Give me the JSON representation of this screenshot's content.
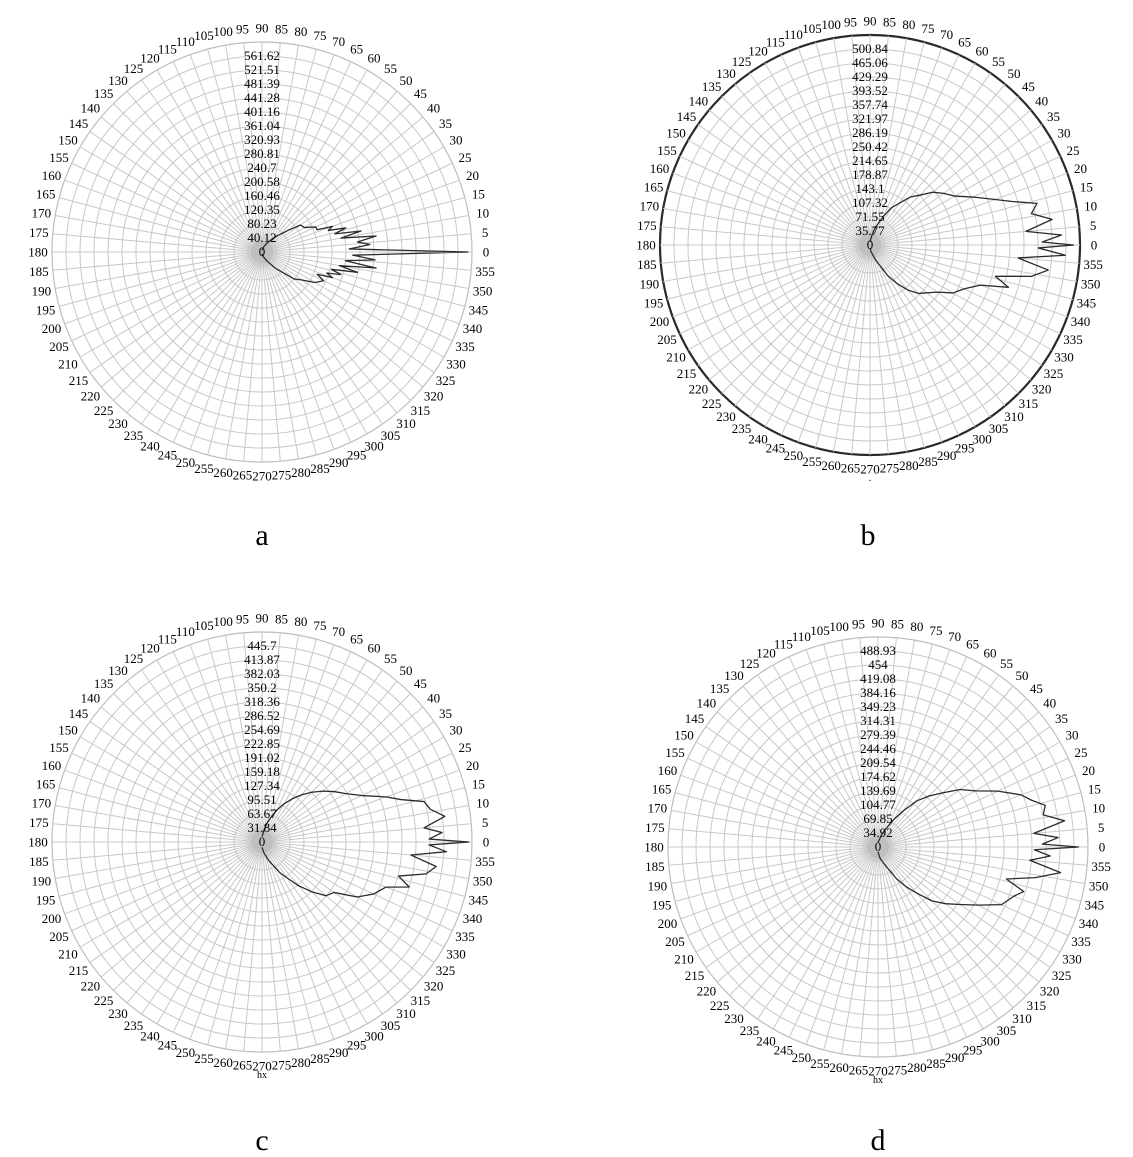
{
  "chart_data": [
    {
      "type": "line",
      "subtype": "polar",
      "panel_label": "a",
      "angle_unit": "degrees",
      "angle_ticks": [
        0,
        5,
        10,
        15,
        20,
        25,
        30,
        35,
        40,
        45,
        50,
        55,
        60,
        65,
        70,
        75,
        80,
        85,
        90,
        95,
        100,
        105,
        110,
        115,
        120,
        125,
        130,
        135,
        140,
        145,
        150,
        155,
        160,
        165,
        170,
        175,
        180,
        185,
        190,
        195,
        200,
        205,
        210,
        215,
        220,
        225,
        230,
        235,
        240,
        245,
        250,
        255,
        260,
        265,
        270,
        275,
        280,
        285,
        290,
        295,
        300,
        305,
        310,
        315,
        320,
        325,
        330,
        335,
        340,
        345,
        350,
        355
      ],
      "radial_tick_labels": [
        "0",
        "40.12",
        "80.23",
        "120.35",
        "160.46",
        "200.58",
        "240.7",
        "280.81",
        "320.93",
        "361.04",
        "401.16",
        "441.28",
        "481.39",
        "521.51",
        "561.62"
      ],
      "rlim": [
        0,
        601.74
      ],
      "grid": true,
      "outer_ring_bold": false,
      "trace_label": "",
      "series": [
        {
          "theta": [
            -90,
            -80,
            -70,
            -60,
            -50,
            -40,
            -35,
            -30,
            -25,
            -22,
            -20,
            -18,
            -16,
            -14,
            -12,
            -10,
            -8,
            -6,
            -4,
            -2,
            0,
            2,
            4,
            6,
            8,
            10,
            12,
            14,
            16,
            18,
            20,
            22,
            25,
            30,
            35,
            40,
            50,
            60,
            70,
            80,
            90
          ],
          "r": [
            5,
            10,
            17,
            32,
            62,
            120,
            140,
            175,
            195,
            170,
            215,
            195,
            235,
            205,
            280,
            225,
            330,
            240,
            325,
            260,
            590,
            250,
            310,
            275,
            330,
            230,
            290,
            215,
            250,
            200,
            215,
            170,
            170,
            140,
            135,
            95,
            55,
            30,
            17,
            10,
            5
          ]
        }
      ]
    },
    {
      "type": "line",
      "subtype": "polar",
      "panel_label": "b",
      "angle_unit": "degrees",
      "angle_ticks": [
        0,
        5,
        10,
        15,
        20,
        25,
        30,
        35,
        40,
        45,
        50,
        55,
        60,
        65,
        70,
        75,
        80,
        85,
        90,
        95,
        100,
        105,
        110,
        115,
        120,
        125,
        130,
        135,
        140,
        145,
        150,
        155,
        160,
        165,
        170,
        175,
        180,
        185,
        190,
        195,
        200,
        205,
        210,
        215,
        220,
        225,
        230,
        235,
        240,
        245,
        250,
        255,
        260,
        265,
        270,
        275,
        280,
        285,
        290,
        295,
        300,
        305,
        310,
        315,
        320,
        325,
        330,
        335,
        340,
        345,
        350,
        355
      ],
      "radial_tick_labels": [
        "0",
        "35.77",
        "71.55",
        "107.32",
        "143.1",
        "178.87",
        "214.65",
        "250.42",
        "286.19",
        "321.97",
        "357.74",
        "393.52",
        "429.29",
        "465.06",
        "500.84"
      ],
      "rlim": [
        0,
        536.61
      ],
      "grid": true,
      "outer_ring_bold": true,
      "trace_label": ".",
      "series": [
        {
          "theta": [
            -90,
            -80,
            -70,
            -60,
            -55,
            -50,
            -45,
            -40,
            -35,
            -30,
            -25,
            -20,
            -17,
            -14,
            -11,
            -8,
            -5,
            -3,
            -1,
            0,
            1,
            3,
            5,
            8,
            11,
            14,
            17,
            20,
            25,
            30,
            35,
            40,
            45,
            50,
            55,
            60,
            65,
            70,
            75,
            80,
            90
          ],
          "r": [
            8,
            18,
            40,
            90,
            120,
            150,
            175,
            190,
            210,
            245,
            265,
            300,
            370,
            330,
            420,
            460,
            380,
            500,
            430,
            520,
            440,
            490,
            400,
            470,
            420,
            440,
            380,
            340,
            290,
            250,
            230,
            210,
            180,
            160,
            130,
            110,
            80,
            55,
            40,
            22,
            8
          ]
        }
      ]
    },
    {
      "type": "line",
      "subtype": "polar",
      "panel_label": "c",
      "angle_unit": "degrees",
      "angle_ticks": [
        0,
        5,
        10,
        15,
        20,
        25,
        30,
        35,
        40,
        45,
        50,
        55,
        60,
        65,
        70,
        75,
        80,
        85,
        90,
        95,
        100,
        105,
        110,
        115,
        120,
        125,
        130,
        135,
        140,
        145,
        150,
        155,
        160,
        165,
        170,
        175,
        180,
        185,
        190,
        195,
        200,
        205,
        210,
        215,
        220,
        225,
        230,
        235,
        240,
        245,
        250,
        255,
        260,
        265,
        270,
        275,
        280,
        285,
        290,
        295,
        300,
        305,
        310,
        315,
        320,
        325,
        330,
        335,
        340,
        345,
        350,
        355
      ],
      "radial_tick_labels": [
        "0",
        "31.84",
        "63.67",
        "95.51",
        "127.34",
        "159.18",
        "191.02",
        "222.85",
        "254.69",
        "286.52",
        "318.36",
        "350.2",
        "382.03",
        "413.87",
        "445.7"
      ],
      "rlim": [
        0,
        477.54
      ],
      "grid": true,
      "outer_ring_bold": false,
      "trace_label": "hx",
      "series": [
        {
          "theta": [
            -90,
            -80,
            -70,
            -60,
            -55,
            -50,
            -45,
            -40,
            -35,
            -30,
            -25,
            -20,
            -17,
            -14,
            -11,
            -8,
            -5,
            -3,
            -1,
            0,
            1,
            3,
            5,
            8,
            11,
            14,
            17,
            20,
            25,
            30,
            35,
            40,
            45,
            50,
            55,
            60,
            65,
            70,
            75,
            80,
            90
          ],
          "r": [
            12,
            25,
            45,
            80,
            100,
            130,
            160,
            190,
            200,
            250,
            280,
            300,
            350,
            320,
            380,
            400,
            340,
            420,
            380,
            470,
            380,
            410,
            370,
            420,
            390,
            380,
            330,
            300,
            250,
            220,
            200,
            180,
            160,
            140,
            120,
            100,
            80,
            60,
            45,
            28,
            12
          ]
        }
      ]
    },
    {
      "type": "line",
      "subtype": "polar",
      "panel_label": "d",
      "angle_unit": "degrees",
      "angle_ticks": [
        0,
        5,
        10,
        15,
        20,
        25,
        30,
        35,
        40,
        45,
        50,
        55,
        60,
        65,
        70,
        75,
        80,
        85,
        90,
        95,
        100,
        105,
        110,
        115,
        120,
        125,
        130,
        135,
        140,
        145,
        150,
        155,
        160,
        165,
        170,
        175,
        180,
        185,
        190,
        195,
        200,
        205,
        210,
        215,
        220,
        225,
        230,
        235,
        240,
        245,
        250,
        255,
        260,
        265,
        270,
        275,
        280,
        285,
        290,
        295,
        300,
        305,
        310,
        315,
        320,
        325,
        330,
        335,
        340,
        345,
        350,
        355
      ],
      "radial_tick_labels": [
        "0",
        "34.92",
        "69.85",
        "104.77",
        "139.69",
        "174.62",
        "209.54",
        "244.46",
        "279.39",
        "314.31",
        "349.23",
        "384.16",
        "419.08",
        "454",
        "488.93"
      ],
      "rlim": [
        0,
        523.85
      ],
      "grid": true,
      "outer_ring_bold": false,
      "trace_label": "hx",
      "series": [
        {
          "theta": [
            -90,
            -80,
            -70,
            -60,
            -55,
            -50,
            -45,
            -40,
            -35,
            -30,
            -25,
            -20,
            -17,
            -14,
            -11,
            -8,
            -5,
            -3,
            -1,
            0,
            1,
            3,
            5,
            8,
            11,
            14,
            17,
            20,
            25,
            30,
            35,
            40,
            45,
            50,
            55,
            60,
            65,
            70,
            75,
            80,
            90
          ],
          "r": [
            12,
            28,
            45,
            90,
            120,
            150,
            190,
            220,
            250,
            290,
            340,
            360,
            380,
            330,
            400,
            460,
            380,
            430,
            390,
            500,
            410,
            450,
            390,
            470,
            420,
            430,
            400,
            380,
            330,
            280,
            250,
            210,
            180,
            150,
            110,
            80,
            55,
            40,
            28,
            18,
            12
          ]
        }
      ]
    }
  ]
}
